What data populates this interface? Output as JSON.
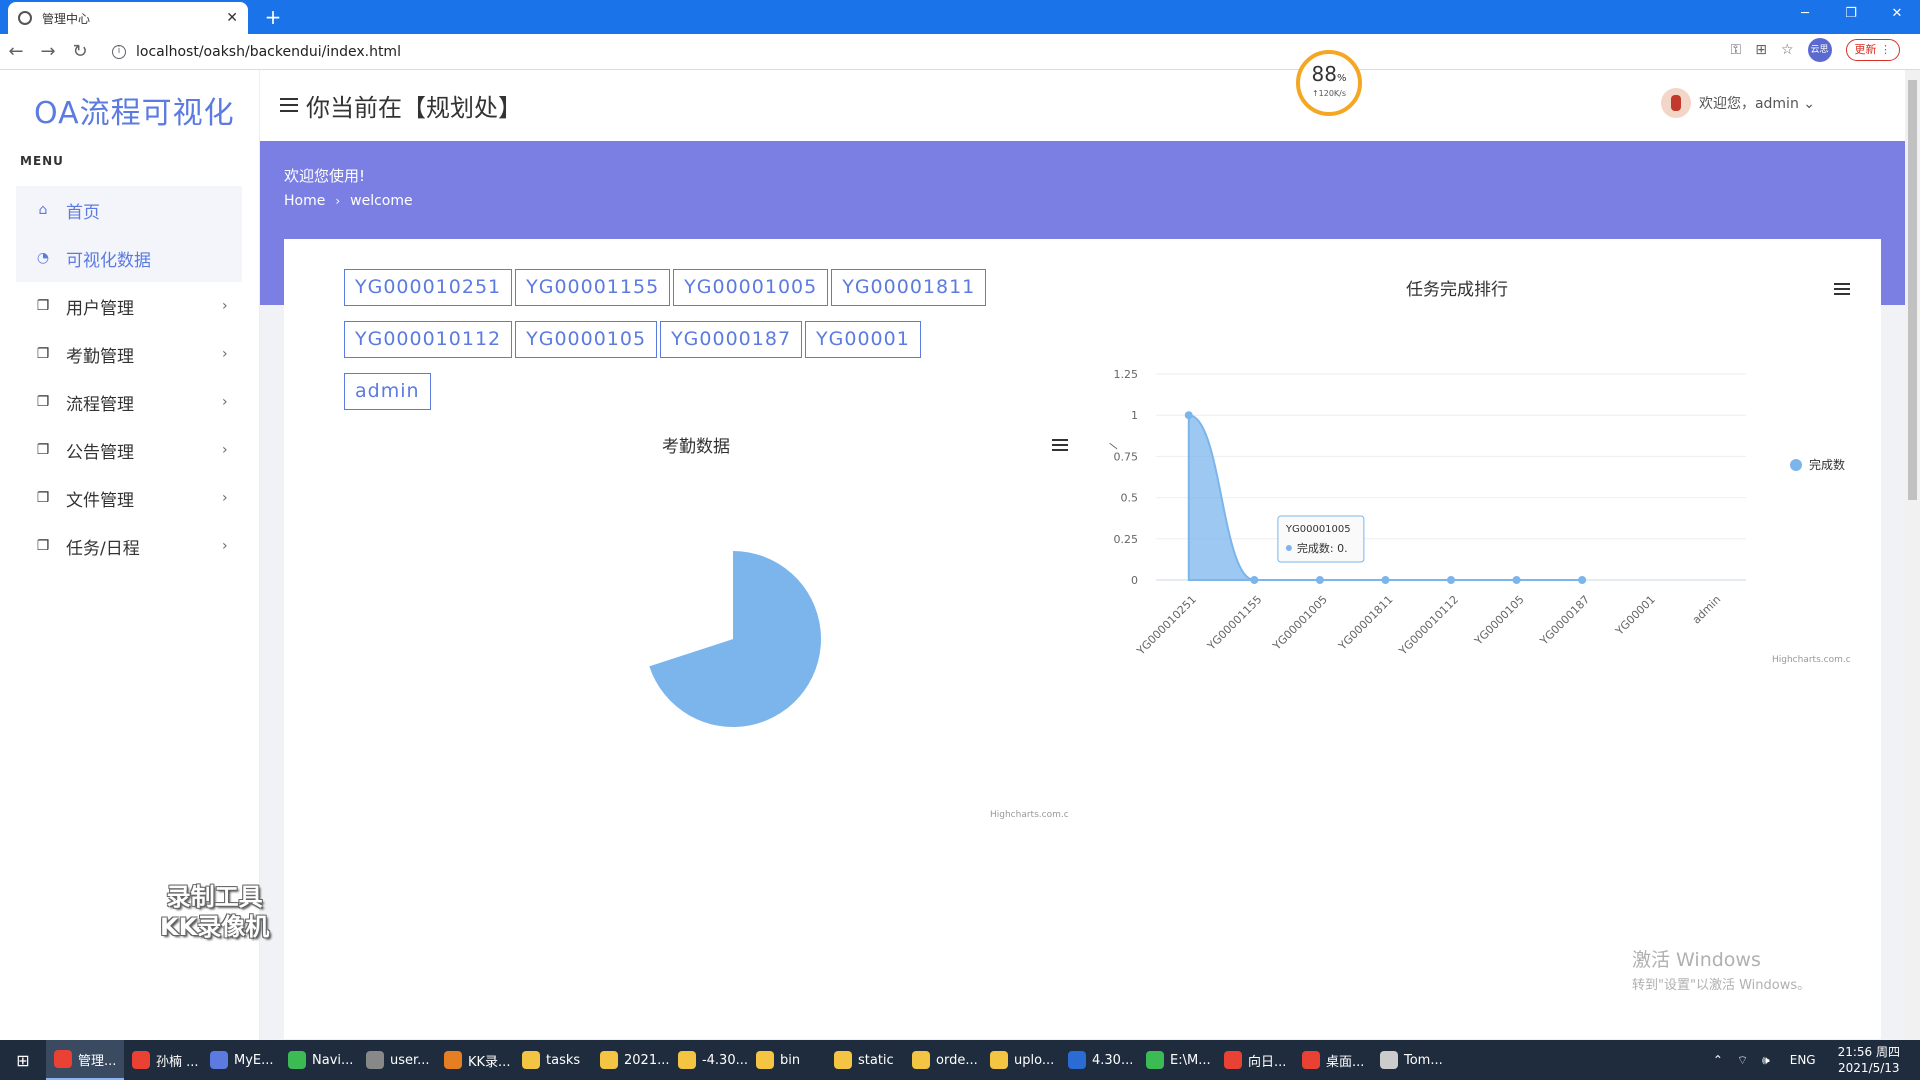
{
  "browser": {
    "tab_title": "管理中心",
    "tab_close": "✕",
    "new_tab": "+",
    "url": "localhost/oaksh/backendui/index.html",
    "update_label": "更新",
    "profile_label": "云思"
  },
  "sidebar": {
    "logo": "OA流程可视化",
    "menu_label": "MENU",
    "items": [
      {
        "label": "首页",
        "icon": "home-icon"
      },
      {
        "label": "可视化数据",
        "icon": "pie-icon"
      },
      {
        "label": "用户管理",
        "icon": "copy-icon"
      },
      {
        "label": "考勤管理",
        "icon": "copy-icon"
      },
      {
        "label": "流程管理",
        "icon": "copy-icon"
      },
      {
        "label": "公告管理",
        "icon": "copy-icon"
      },
      {
        "label": "文件管理",
        "icon": "copy-icon"
      },
      {
        "label": "任务/日程",
        "icon": "copy-icon"
      }
    ]
  },
  "header": {
    "title": "你当前在【规划处】",
    "welcome_user": "欢迎您，admin ⌄"
  },
  "gauge": {
    "value": "88",
    "unit": "%",
    "sub": "↑120K/s"
  },
  "banner": {
    "title": "欢迎您使用!",
    "breadcrumb_home": "Home",
    "breadcrumb_current": "welcome"
  },
  "tags": [
    "YG000010251",
    "YG00001155",
    "YG00001005",
    "YG00001811",
    "YG000010112",
    "YG0000105",
    "YG0000187",
    "YG00001",
    "admin"
  ],
  "credit": "Highcharts.com.c",
  "chart_data": [
    {
      "type": "pie",
      "title": "考勤数据",
      "slices": [
        {
          "fraction": 0.7
        },
        {
          "fraction": 0.3
        }
      ],
      "colors": [
        "#7cb5ec",
        "#ffffff"
      ]
    },
    {
      "type": "area",
      "title": "任务完成排行",
      "categories": [
        "YG000010251",
        "YG00001155",
        "YG00001005",
        "YG00001811",
        "YG000010112",
        "YG0000105",
        "YG0000187",
        "YG00001",
        "admin"
      ],
      "series": [
        {
          "name": "完成数",
          "values": [
            1,
            0,
            0,
            0,
            0,
            0,
            0,
            null,
            null
          ]
        }
      ],
      "ylim": [
        0,
        1.25
      ],
      "yticks": [
        "0",
        "0.25",
        "0.5",
        "0.75",
        "1",
        "1.25"
      ],
      "ylabel": "/",
      "legend": "right",
      "color": "#7cb5ec",
      "tooltip": {
        "category": "YG00001005",
        "series": "完成数",
        "value": "0."
      }
    }
  ],
  "overlay": {
    "watermark_line1": "录制工具",
    "watermark_line2": "KK录像机",
    "activate_title": "激活 Windows",
    "activate_sub": "转到\"设置\"以激活 Windows。"
  },
  "taskbar": {
    "items": [
      {
        "label": "管理...",
        "color": "#e94235"
      },
      {
        "label": "孙楠 ...",
        "color": "#e94235"
      },
      {
        "label": "MyE...",
        "color": "#5b7be0"
      },
      {
        "label": "Navi...",
        "color": "#3cba54"
      },
      {
        "label": "user...",
        "color": "#888888"
      },
      {
        "label": "KK录...",
        "color": "#e67e22"
      },
      {
        "label": "tasks",
        "color": "#f4c542"
      },
      {
        "label": "2021...",
        "color": "#f4c542"
      },
      {
        "label": "-4.30...",
        "color": "#f4c542"
      },
      {
        "label": "bin",
        "color": "#f4c542"
      },
      {
        "label": "static",
        "color": "#f4c542"
      },
      {
        "label": "orde...",
        "color": "#f4c542"
      },
      {
        "label": "uplo...",
        "color": "#f4c542"
      },
      {
        "label": "4.30...",
        "color": "#2b6cd4"
      },
      {
        "label": "E:\\M...",
        "color": "#3cba54"
      },
      {
        "label": "向日...",
        "color": "#e94235"
      },
      {
        "label": "桌面...",
        "color": "#e94235"
      },
      {
        "label": "Tom...",
        "color": "#cccccc"
      }
    ],
    "lang": "ENG",
    "time": "21:56 周四",
    "date": "2021/5/13"
  }
}
